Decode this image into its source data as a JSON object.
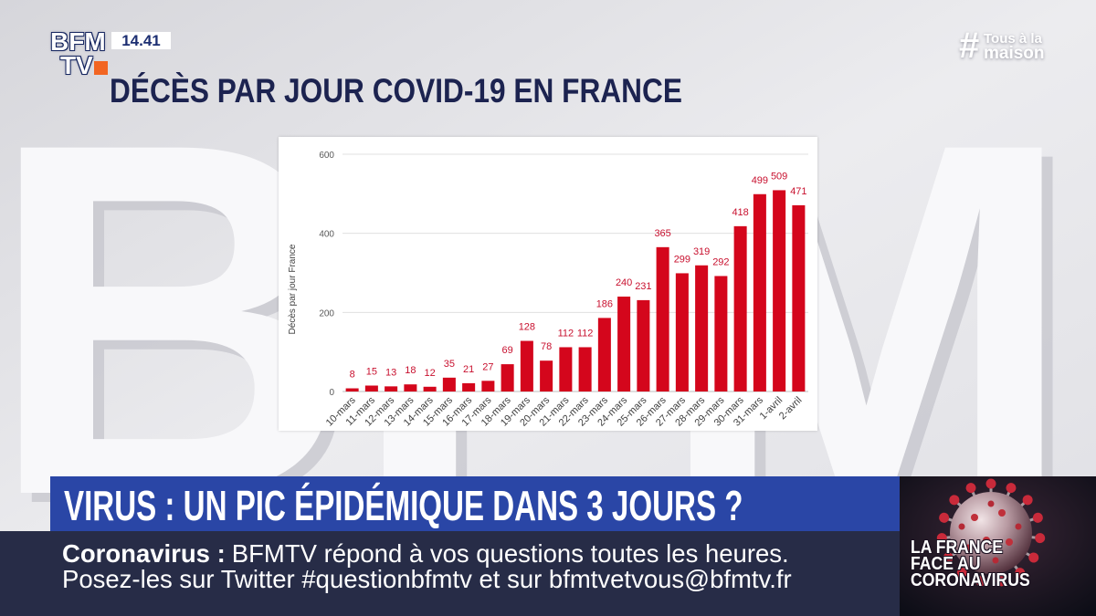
{
  "channel": {
    "logo_top": "BFM",
    "logo_bottom": "TV",
    "clock": "14.41"
  },
  "hashtag": {
    "symbol": "#",
    "line1": "Tous à la",
    "line2": "maison"
  },
  "watermark": "BFM",
  "chart_data": {
    "type": "bar",
    "title": "DÉCÈS PAR JOUR COVID-19 EN FRANCE",
    "ylabel": "Décès par jour France",
    "categories": [
      "10-mars",
      "11-mars",
      "12-mars",
      "13-mars",
      "14-mars",
      "15-mars",
      "16-mars",
      "17-mars",
      "18-mars",
      "19-mars",
      "20-mars",
      "21-mars",
      "22-mars",
      "23-mars",
      "24-mars",
      "25-mars",
      "26-mars",
      "27-mars",
      "28-mars",
      "29-mars",
      "30-mars",
      "31-mars",
      "1-avril",
      "2-avril"
    ],
    "values": [
      8,
      15,
      13,
      18,
      12,
      35,
      21,
      27,
      69,
      128,
      78,
      112,
      112,
      186,
      240,
      231,
      365,
      299,
      319,
      292,
      418,
      499,
      509,
      471
    ],
    "ylim": [
      0,
      600
    ],
    "yticks": [
      0,
      200,
      400,
      600
    ],
    "grid": true,
    "data_labels": true,
    "bar_color": "#d4061c",
    "label_color": "#c8102e"
  },
  "headline": "VIRUS : UN PIC ÉPIDÉMIQUE DANS 3 JOURS ?",
  "ticker": {
    "label": "Coronavirus :",
    "line1": "BFMTV répond à vos questions toutes les heures.",
    "line2": "Posez-les sur Twitter #questionbfmtv et sur bfmtvetvous@bfmtv.fr"
  },
  "program_tile": {
    "lines": [
      "LA FRANCE",
      "FACE AU",
      "CORONAVIRUS"
    ]
  },
  "colors": {
    "title": "#1c2350",
    "headline_bg": "#2a46a6",
    "ticker_bg": "#272c47",
    "logo_accent": "#f26522"
  }
}
